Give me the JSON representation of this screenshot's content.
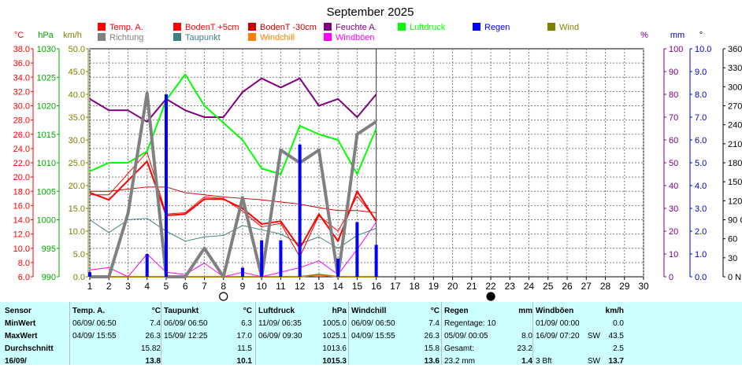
{
  "chart_data": {
    "type": "line",
    "title": "September 2025",
    "x": [
      1,
      2,
      3,
      4,
      5,
      6,
      7,
      8,
      9,
      10,
      11,
      12,
      13,
      14,
      15,
      16
    ],
    "x_ticks": [
      "1",
      "2",
      "3",
      "4",
      "5",
      "6",
      "7",
      "8",
      "9",
      "10",
      "11",
      "12",
      "13",
      "14",
      "15",
      "16",
      "17",
      "18",
      "19",
      "20",
      "21",
      "22",
      "23",
      "24",
      "25",
      "26",
      "27",
      "28",
      "29",
      "30"
    ],
    "xlim": [
      1,
      30
    ],
    "grid": true,
    "axes": [
      {
        "unit": "°C",
        "ylim": [
          6,
          38
        ],
        "ticks": [
          "38.0",
          "36.0",
          "34.0",
          "32.0",
          "30.0",
          "28.0",
          "26.0",
          "24.0",
          "22.0",
          "20.0",
          "18.0",
          "16.0",
          "14.0",
          "12.0",
          "10.0",
          "8.0",
          "6.0"
        ],
        "color": "#ff0000"
      },
      {
        "unit": "hPa",
        "ylim": [
          990,
          1030
        ],
        "ticks": [
          "1030",
          "1025",
          "1020",
          "1015",
          "1010",
          "1005",
          "1000",
          "995",
          "990"
        ],
        "color": "#00aa00"
      },
      {
        "unit": "km/h",
        "ylim": [
          0,
          50
        ],
        "ticks": [
          "50.0",
          "45.0",
          "40.0",
          "35.0",
          "30.0",
          "25.0",
          "20.0",
          "15.0",
          "10.0",
          "5.0",
          "0.0"
        ],
        "color": "#808000"
      },
      {
        "unit": "%",
        "ylim": [
          0,
          100
        ],
        "ticks": [
          "100",
          "90",
          "80",
          "70",
          "60",
          "50",
          "40",
          "30",
          "20",
          "10",
          "0"
        ],
        "color": "#800080"
      },
      {
        "unit": "mm",
        "ylim": [
          0,
          10
        ],
        "ticks": [
          "10.0",
          "9.0",
          "8.0",
          "7.0",
          "6.0",
          "5.0",
          "4.0",
          "3.0",
          "2.0",
          "1.0",
          "0.0"
        ],
        "color": "#0000cc"
      },
      {
        "unit": "°",
        "ylim": [
          0,
          360
        ],
        "ticks": [
          "360 N",
          "330",
          "300",
          "270 W",
          "240",
          "210",
          "180 S",
          "150",
          "120",
          "90 O",
          "60",
          "30",
          "0 N"
        ],
        "color": "#000000"
      }
    ],
    "legend": [
      {
        "name": "Temp. A.",
        "color": "#ff0000"
      },
      {
        "name": "BodenT +5cm",
        "color": "#ff0000"
      },
      {
        "name": "BodenT -30cm",
        "color": "#cc0000"
      },
      {
        "name": "Feuchte A.",
        "color": "#800080"
      },
      {
        "name": "Luftdruck",
        "color": "#00ff00"
      },
      {
        "name": "Regen",
        "color": "#0000ff"
      },
      {
        "name": "Wind",
        "color": "#808000"
      },
      {
        "name": "Richtung",
        "color": "#808080"
      },
      {
        "name": "Taupunkt",
        "color": "#408080"
      },
      {
        "name": "Windchill",
        "color": "#ff8000"
      },
      {
        "name": "Windböen",
        "color": "#ff00ff"
      }
    ],
    "series": [
      {
        "name": "Temp. A.",
        "axis": 0,
        "color": "#ff0000",
        "width": 2,
        "values": [
          17.8,
          16.8,
          19.5,
          22.2,
          14.6,
          14.8,
          16.9,
          16.9,
          15.6,
          13.4,
          13.8,
          10.0,
          14.8,
          11.0,
          18.0,
          13.8
        ]
      },
      {
        "name": "BodenT +5cm",
        "axis": 0,
        "color": "#ff0000",
        "width": 1,
        "values": [
          17.5,
          17.5,
          20.5,
          23.5,
          14.8,
          15.0,
          17.2,
          17.0,
          15.2,
          13.0,
          13.5,
          8.8,
          14.6,
          12.4,
          17.3,
          14.0
        ]
      },
      {
        "name": "BodenT -30cm",
        "axis": 0,
        "color": "#cc0000",
        "width": 1,
        "values": [
          18.0,
          18.0,
          18.3,
          18.6,
          18.6,
          17.8,
          17.5,
          17.2,
          17.0,
          16.8,
          16.5,
          16.2,
          15.7,
          15.3,
          15.3,
          15.0
        ]
      },
      {
        "name": "Feuchte A.",
        "axis": 3,
        "color": "#800080",
        "width": 2,
        "values": [
          78,
          73,
          73,
          68,
          78,
          73,
          70,
          70,
          81,
          87,
          83,
          87,
          75,
          78,
          70,
          80
        ]
      },
      {
        "name": "Luftdruck",
        "axis": 1,
        "color": "#00ff00",
        "width": 2,
        "values": [
          1008.5,
          1010.0,
          1010.0,
          1012.0,
          1021.0,
          1025.5,
          1020.0,
          1017.0,
          1014.0,
          1009.0,
          1008.0,
          1016.5,
          1015.0,
          1014.0,
          1008.0,
          1016.0
        ]
      },
      {
        "name": "Richtung",
        "axis": 5,
        "color": "#808080",
        "width": 4,
        "values": [
          0,
          0,
          100,
          290,
          0,
          0,
          45,
          0,
          125,
          0,
          200,
          180,
          200,
          0,
          225,
          245
        ]
      },
      {
        "name": "Taupunkt",
        "axis": 0,
        "color": "#408080",
        "width": 1,
        "values": [
          14.0,
          12.2,
          14.0,
          14.2,
          12.4,
          11.0,
          11.6,
          11.8,
          13.2,
          12.6,
          12.0,
          10.6,
          11.6,
          10.0,
          11.8,
          12.8
        ]
      },
      {
        "name": "Windböen",
        "axis": 2,
        "color": "#ff00ff",
        "width": 1,
        "values": [
          1.5,
          2.0,
          0.0,
          5.0,
          1.0,
          0.5,
          3.0,
          0.0,
          1.0,
          0.0,
          1.0,
          2.0,
          3.5,
          0.5,
          6.0,
          12.0
        ]
      },
      {
        "name": "Wind",
        "axis": 2,
        "color": "#808000",
        "width": 2,
        "values": [
          0,
          0,
          0,
          0,
          0,
          0,
          0,
          0,
          0,
          0,
          0,
          0,
          0.5,
          0,
          0,
          0
        ]
      },
      {
        "name": "Windchill",
        "axis": 0,
        "color": "#ff8000",
        "width": 1,
        "values": [
          6.0,
          6.0,
          6.0,
          6.0,
          6.0,
          6.0,
          6.0,
          6.0,
          6.0,
          6.0,
          6.0,
          6.0,
          6.2,
          6.0,
          6.0,
          6.0
        ]
      }
    ],
    "rain": {
      "name": "Regen",
      "axis": 4,
      "color": "#0000ff",
      "x": [
        1,
        4,
        5,
        9,
        10,
        11,
        12,
        14,
        15,
        16
      ],
      "values": [
        0.2,
        1.0,
        8.0,
        0.4,
        1.6,
        1.6,
        5.8,
        0.8,
        2.4,
        1.4
      ]
    },
    "moon": [
      {
        "x": 8,
        "phase": "full"
      },
      {
        "x": 22,
        "phase": "new"
      }
    ]
  },
  "stats": {
    "columns": [
      {
        "title": "Sensor",
        "unit": "",
        "rows": [
          [
            "MinWert",
            "",
            ""
          ],
          [
            "MaxWert",
            "",
            ""
          ],
          [
            "Durchschnitt",
            "",
            ""
          ],
          [
            "16/09/",
            "",
            ""
          ]
        ]
      },
      {
        "title": "Temp. A.",
        "unit": "°C",
        "rows": [
          [
            "06/09/ 06:50",
            "",
            "7.4"
          ],
          [
            "04/09/ 15:55",
            "",
            "26.3"
          ],
          [
            "",
            "",
            "15.82"
          ],
          [
            "",
            "",
            "13.8"
          ]
        ]
      },
      {
        "title": "Taupunkt",
        "unit": "°C",
        "rows": [
          [
            "06/09/ 06:50",
            "",
            "6.3"
          ],
          [
            "15/09/ 12:25",
            "",
            "17.0"
          ],
          [
            "",
            "",
            "11.5"
          ],
          [
            "",
            "",
            "10.1"
          ]
        ]
      },
      {
        "title": "Luftdruck",
        "unit": "hPa",
        "rows": [
          [
            "11/09/ 06:35",
            "",
            "1005.0"
          ],
          [
            "06/09/ 09:30",
            "",
            "1025.1"
          ],
          [
            "",
            "",
            "1013.6"
          ],
          [
            "",
            "",
            "1015.3"
          ]
        ]
      },
      {
        "title": "Windchill",
        "unit": "°C",
        "rows": [
          [
            "06/09/ 06:50",
            "",
            "7.4"
          ],
          [
            "04/09/ 15:55",
            "",
            "26.3"
          ],
          [
            "",
            "",
            "15.8"
          ],
          [
            "",
            "",
            "13.6"
          ]
        ]
      },
      {
        "title": "Regen",
        "unit": "mm",
        "rows": [
          [
            "Regentage: 10",
            "",
            ""
          ],
          [
            "05/09/ 00:05",
            "",
            "8.0"
          ],
          [
            "Gesamt:",
            "",
            "23.2"
          ],
          [
            "23.2 mm",
            "",
            "1.4"
          ]
        ]
      },
      {
        "title": "Windböen",
        "unit": "km/h",
        "rows": [
          [
            "01/09/ 00:00",
            "",
            "0.0"
          ],
          [
            "16/09/ 07:20",
            "SW",
            "43.5"
          ],
          [
            "",
            "",
            "2.5"
          ],
          [
            "3 Bft",
            "SW",
            "13.7"
          ]
        ]
      }
    ]
  }
}
